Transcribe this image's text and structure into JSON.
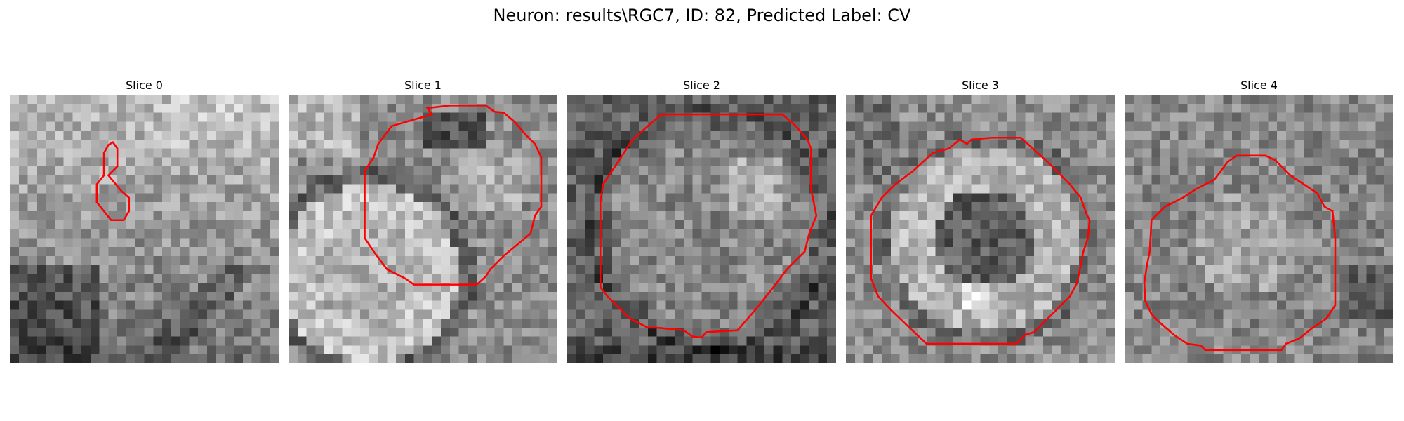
{
  "figure": {
    "title": "Neuron: results\\RGC7, ID: 82, Predicted Label: CV",
    "contour_color": "#ff0000",
    "grid_size": 30
  },
  "slices": [
    {
      "title": "Slice 0",
      "contour": [
        [
          11,
          9
        ],
        [
          12,
          8
        ],
        [
          12,
          6
        ],
        [
          11.5,
          5.3
        ],
        [
          11,
          5.6
        ],
        [
          10.5,
          6.5
        ],
        [
          10.5,
          9
        ],
        [
          9.7,
          10
        ],
        [
          9.7,
          12
        ],
        [
          10.5,
          13
        ],
        [
          11.3,
          14
        ],
        [
          12.7,
          14
        ],
        [
          13.3,
          13
        ],
        [
          13.3,
          11.5
        ],
        [
          12.5,
          10.8
        ]
      ]
    },
    {
      "title": "Slice 1",
      "contour": [
        [
          15.5,
          1.5
        ],
        [
          16,
          2.2
        ],
        [
          11.5,
          3.5
        ],
        [
          10,
          5.5
        ],
        [
          9.5,
          7
        ],
        [
          8.5,
          8.5
        ],
        [
          8.5,
          16
        ],
        [
          9.5,
          17.5
        ],
        [
          11,
          19.5
        ],
        [
          13,
          20.5
        ],
        [
          14,
          21.2
        ],
        [
          21,
          21.2
        ],
        [
          22,
          20.3
        ],
        [
          22.5,
          19.5
        ],
        [
          24,
          18
        ],
        [
          27,
          15.5
        ],
        [
          27.5,
          13.5
        ],
        [
          28.2,
          12.5
        ],
        [
          28.2,
          7
        ],
        [
          27.5,
          5.5
        ],
        [
          26.5,
          4.5
        ],
        [
          25.2,
          3
        ],
        [
          24,
          2
        ],
        [
          23,
          1.9
        ],
        [
          22,
          1.2
        ],
        [
          18,
          1.2
        ]
      ]
    },
    {
      "title": "Slice 2",
      "contour": [
        [
          9,
          3.5
        ],
        [
          7.3,
          5
        ],
        [
          6,
          7
        ],
        [
          5,
          8.5
        ],
        [
          4,
          10
        ],
        [
          3.7,
          12
        ],
        [
          3.7,
          21.5
        ],
        [
          4.5,
          22.5
        ],
        [
          5.5,
          23.5
        ],
        [
          7,
          25
        ],
        [
          9,
          26
        ],
        [
          10,
          26
        ],
        [
          13,
          26.3
        ],
        [
          14,
          27
        ],
        [
          15,
          27.1
        ],
        [
          15.5,
          26.5
        ],
        [
          19,
          26.3
        ],
        [
          21,
          24
        ],
        [
          23,
          21.5
        ],
        [
          24.5,
          19.5
        ],
        [
          26.5,
          17.5
        ],
        [
          27,
          15.5
        ],
        [
          27.8,
          13.5
        ],
        [
          27.2,
          10.5
        ],
        [
          27.2,
          6
        ],
        [
          26.8,
          5
        ],
        [
          25.5,
          3.5
        ],
        [
          24,
          2.2
        ],
        [
          10.5,
          2.2
        ]
      ]
    },
    {
      "title": "Slice 3",
      "contour": [
        [
          12.7,
          5
        ],
        [
          11.5,
          6
        ],
        [
          9.7,
          6.5
        ],
        [
          7.5,
          8.5
        ],
        [
          5.5,
          10
        ],
        [
          4,
          11.5
        ],
        [
          2.8,
          13.5
        ],
        [
          2.8,
          20.5
        ],
        [
          3.6,
          22.5
        ],
        [
          5,
          24
        ],
        [
          7.3,
          26.2
        ],
        [
          9,
          27.8
        ],
        [
          19,
          27.8
        ],
        [
          20,
          26.8
        ],
        [
          21,
          26.5
        ],
        [
          23,
          24.5
        ],
        [
          25,
          22.5
        ],
        [
          25.8,
          21
        ],
        [
          26.5,
          17.5
        ],
        [
          27,
          16
        ],
        [
          27.2,
          14
        ],
        [
          26.8,
          13.2
        ],
        [
          26.2,
          11.5
        ],
        [
          25,
          10
        ],
        [
          22.5,
          7.5
        ],
        [
          20.3,
          5.5
        ],
        [
          19.5,
          4.8
        ],
        [
          16.3,
          4.8
        ],
        [
          14,
          5
        ],
        [
          13.5,
          5.5
        ]
      ]
    },
    {
      "title": "Slice 4",
      "contour": [
        [
          11.5,
          7.5
        ],
        [
          10,
          9.5
        ],
        [
          8,
          10.5
        ],
        [
          6.5,
          11.5
        ],
        [
          4.5,
          12.5
        ],
        [
          3,
          14
        ],
        [
          2.8,
          17.5
        ],
        [
          2.5,
          19
        ],
        [
          2.2,
          21
        ],
        [
          2.3,
          23
        ],
        [
          3,
          24.5
        ],
        [
          4,
          25.5
        ],
        [
          5.5,
          26.8
        ],
        [
          7,
          27.8
        ],
        [
          8.5,
          28
        ],
        [
          9,
          28.5
        ],
        [
          17.5,
          28.5
        ],
        [
          18,
          27.8
        ],
        [
          19.5,
          27.2
        ],
        [
          21,
          26
        ],
        [
          22.5,
          25
        ],
        [
          23.5,
          23.5
        ],
        [
          23.5,
          16
        ],
        [
          23.2,
          13
        ],
        [
          22.3,
          12.5
        ],
        [
          21.5,
          11
        ],
        [
          20,
          10
        ],
        [
          18.5,
          9
        ],
        [
          17.5,
          8
        ],
        [
          16.8,
          7.3
        ],
        [
          15.7,
          6.8
        ],
        [
          12.5,
          6.8
        ]
      ]
    }
  ]
}
